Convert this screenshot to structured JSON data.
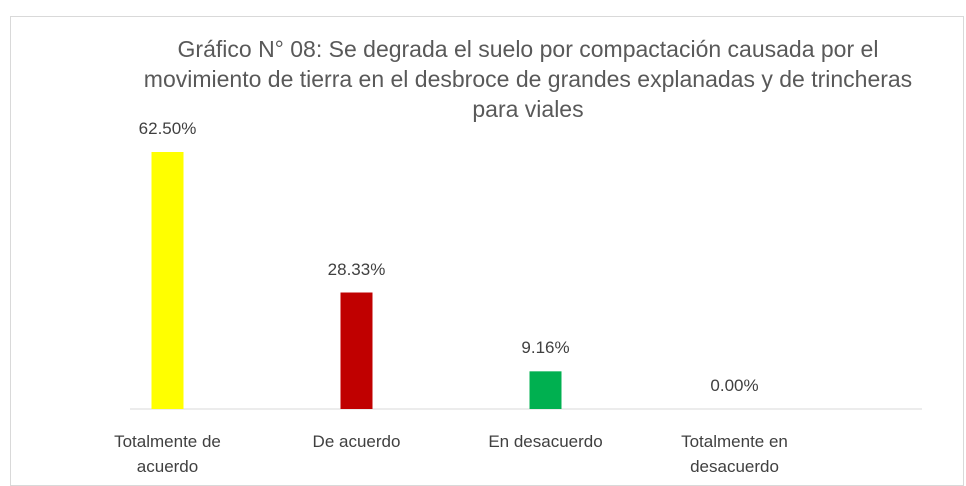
{
  "chart_data": {
    "type": "bar",
    "title": "Gráfico N° 08: Se degrada el suelo por compactación causada por el movimiento de tierra en el desbroce de grandes explanadas y de trincheras para viales",
    "categories": [
      "Totalmente de acuerdo",
      "De acuerdo",
      "En desacuerdo",
      "Totalmente en desacuerdo"
    ],
    "values": [
      62.5,
      28.33,
      9.16,
      0
    ],
    "value_labels": [
      "62.50%",
      "28.33%",
      "9.16%",
      "0.00%"
    ],
    "colors": [
      "#ffff00",
      "#c00000",
      "#00b050",
      null
    ]
  }
}
